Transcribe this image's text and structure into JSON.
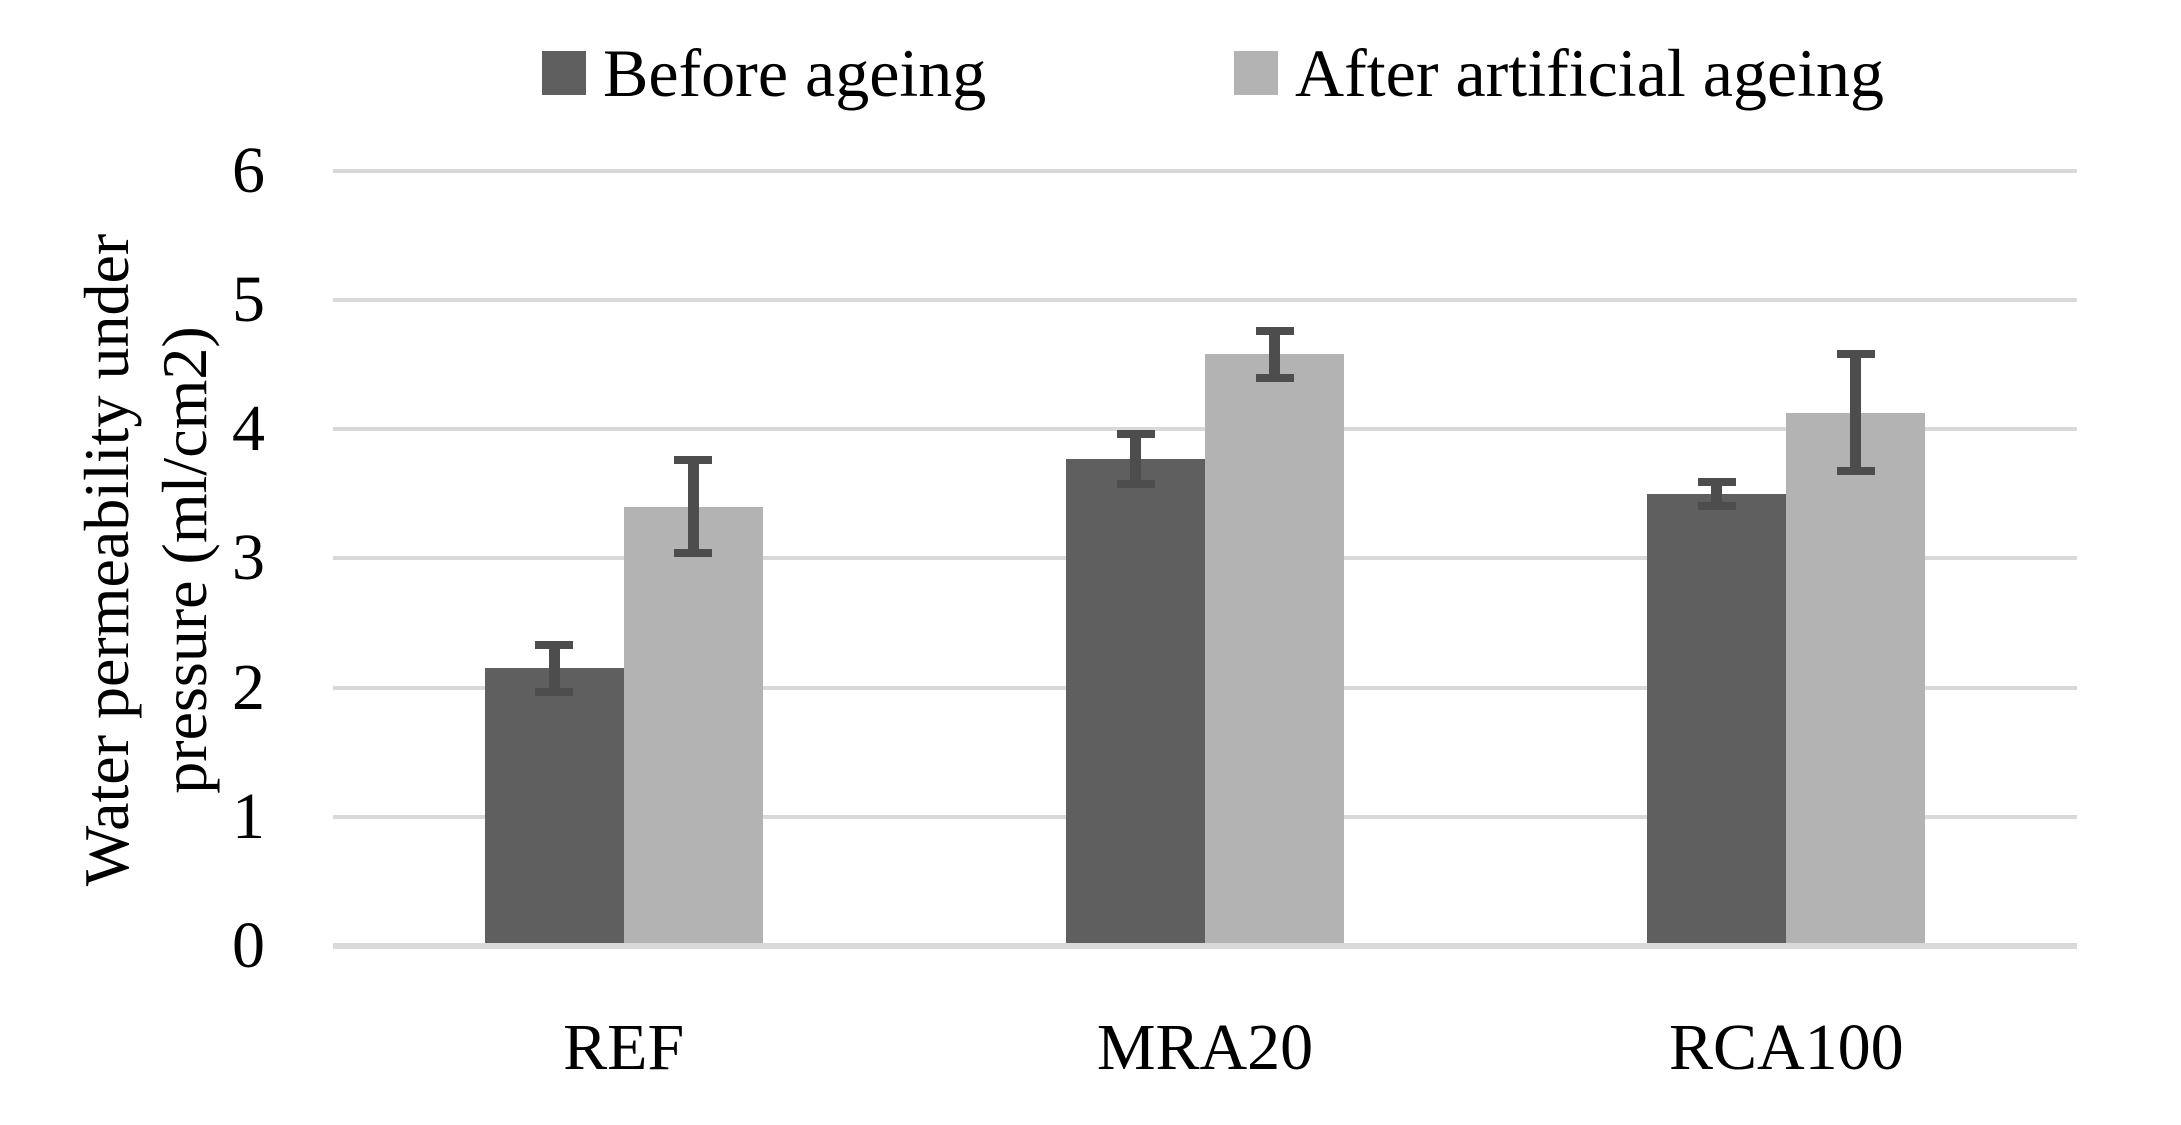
{
  "legend": {
    "items": [
      {
        "label": "Before ageing",
        "color": "#5f5f5f"
      },
      {
        "label": "After artificial ageing",
        "color": "#b3b3b3"
      }
    ]
  },
  "y_axis": {
    "title_line1": "Water permeability under",
    "title_line2": "pressure (ml/cm2)",
    "ticks": [
      0,
      1,
      2,
      3,
      4,
      5,
      6
    ]
  },
  "chart_data": {
    "type": "bar",
    "title": "",
    "categories": [
      "REF",
      "MRA20",
      "RCA100"
    ],
    "series": [
      {
        "name": "Before ageing",
        "color": "#5f5f5f",
        "values": [
          2.15,
          3.77,
          3.5
        ],
        "errors": [
          0.18,
          0.19,
          0.09
        ]
      },
      {
        "name": "After artificial ageing",
        "color": "#b3b3b3",
        "values": [
          3.4,
          4.58,
          4.13
        ],
        "errors": [
          0.36,
          0.18,
          0.45
        ]
      }
    ],
    "xlabel": "",
    "ylabel": "Water permeability under pressure (ml/cm2)",
    "ylim": [
      0,
      6
    ],
    "y_tick_step": 1,
    "grid": true,
    "gridline_color": "#d9d9d9",
    "error_bar_color": "#4d4d4d",
    "legend_position": "top"
  }
}
